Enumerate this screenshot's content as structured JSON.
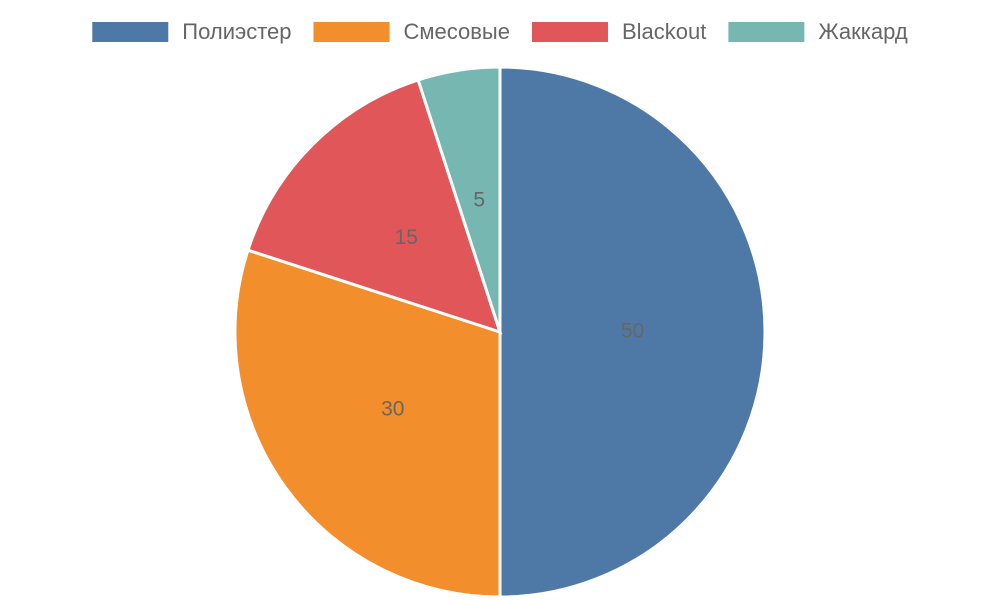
{
  "chart_data": {
    "type": "pie",
    "categories": [
      "Полиэстер",
      "Смесовые",
      "Blackout",
      "Жаккард"
    ],
    "values": [
      50,
      30,
      15,
      5
    ],
    "colors": [
      "#4e79a7",
      "#f28e2b",
      "#e15759",
      "#76b7b2"
    ],
    "legend": "top"
  }
}
